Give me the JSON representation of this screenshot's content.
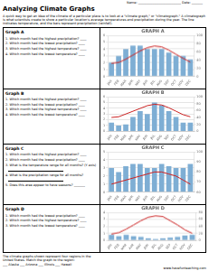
{
  "title": "Analyzing Climate Graphs",
  "subtitle": "A quick way to get an idea of the climate of a particular place is to look at a \"climate graph,\" or \"climatograph.\" A climatograph is what scientists create to show a particular location's average temperatures and precipitation during the year.  The line indicates temperature, and the bars represent precipitation (rainfall).",
  "annotations": [
    "Name: ___________________________   Date: _______",
    "The climate graphs shown represent four regions in the",
    "United States. Match the graph to the region:",
    "___ Alaska   ___ Arizona   ___ Illinois   ___ Hawaii",
    "www.havefunteaching.com"
  ],
  "chart_data": [
    {
      "type": "bar",
      "title": "GRAPH A",
      "annotations": [
        "Graph A",
        "1.  Which month had the highest precipitation? ____",
        "2.  Which month had the lowest precipitation? ____",
        "3.  Which month had the highest temperature? ____",
        "4.  Which month had the lowest temperature? ____"
      ],
      "categories": [
        "JAN",
        "FEB",
        "MAR",
        "APR",
        "MAY",
        "JUN",
        "JUL",
        "AUG",
        "SEP",
        "OCT",
        "NOV",
        "DEC"
      ],
      "series": [
        {
          "type": "bar",
          "color": "#7eaed4",
          "values": [
            2.0,
            3.0,
            4.0,
            4.5,
            4.5,
            4.0,
            4.0,
            4.0,
            3.5,
            3.0,
            3.0,
            2.5
          ]
        },
        {
          "type": "line",
          "color": "#cc2222",
          "axis": "y2",
          "values": [
            32,
            34,
            42,
            52,
            62,
            70,
            74,
            72,
            64,
            54,
            44,
            35
          ]
        }
      ],
      "ylim": [
        0,
        6
      ],
      "yticks": [
        0,
        1,
        2,
        3,
        4,
        5,
        6
      ],
      "y2lim": [
        0,
        100
      ],
      "y2ticks": [
        0,
        20,
        40,
        60,
        80,
        100
      ],
      "grid": true
    },
    {
      "type": "bar",
      "title": "GRAPH B",
      "annotations": [
        "Graph B",
        "1.  Which month had the highest precipitation? ____",
        "2.  Which month had the lowest precipitation? ____",
        "3.  Which month had the highest temperature? ____",
        "4.  Which month had the lowest temperature? ____"
      ],
      "categories": [
        "JAN",
        "FEB",
        "MAR",
        "APR",
        "MAY",
        "JUN",
        "JUL",
        "AUG",
        "SEP",
        "OCT",
        "NOV",
        "DEC"
      ],
      "series": [
        {
          "type": "bar",
          "color": "#7eaed4",
          "values": [
            1.5,
            1.0,
            1.2,
            2.5,
            3.5,
            3.0,
            5.0,
            4.5,
            3.5,
            2.5,
            1.5,
            1.5
          ]
        },
        {
          "type": "line",
          "color": "#cc2222",
          "axis": "y2",
          "values": [
            40,
            42,
            50,
            58,
            66,
            74,
            78,
            76,
            68,
            58,
            48,
            42
          ]
        }
      ],
      "ylim": [
        0,
        6
      ],
      "yticks": [
        0,
        1,
        2,
        3,
        4,
        5,
        6
      ],
      "y2lim": [
        0,
        100
      ],
      "y2ticks": [
        0,
        20,
        40,
        60,
        80,
        100
      ],
      "grid": true
    },
    {
      "type": "bar",
      "title": "GRAPH C",
      "annotations": [
        "Graph C",
        "1.  Which month had the highest precipitation? ____",
        "2.  Which month had the lowest precipitation? ____",
        "3.  What is the temperature range for all months? (Y axis)",
        "4.  What is the precipitation range for all months?",
        "5.  Does this area appear to have seasons? _______"
      ],
      "categories": [
        "JAN",
        "FEB",
        "MAR",
        "APR",
        "MAY",
        "JUN",
        "JUL",
        "AUG",
        "SEP",
        "OCT",
        "NOV",
        "DEC"
      ],
      "series": [
        {
          "type": "bar",
          "color": "#7eaed4",
          "values": [
            3.0,
            2.5,
            3.2,
            3.5,
            3.5,
            3.0,
            3.0,
            3.5,
            3.2,
            3.0,
            3.0,
            3.5
          ]
        },
        {
          "type": "line",
          "color": "#cc2222",
          "axis": "y2",
          "values": [
            68,
            70,
            72,
            74,
            76,
            78,
            80,
            80,
            78,
            76,
            72,
            68
          ]
        }
      ],
      "ylim": [
        0,
        5
      ],
      "yticks": [
        0,
        1,
        2,
        3,
        4,
        5
      ],
      "y2lim": [
        60,
        100
      ],
      "y2ticks": [
        60,
        70,
        80,
        90,
        100
      ],
      "grid": true
    },
    {
      "type": "bar",
      "title": "GRAPH D",
      "annotations": [
        "Graph D",
        "1.  Which month had the lowest precipitation? ____",
        "2.  Which month had the highest temperature? ____",
        "3.  Which month had the lowest temperature? ____"
      ],
      "categories": [
        "JAN",
        "FEB",
        "MAR",
        "APR",
        "MAY",
        "JUN",
        "JUL",
        "AUG",
        "SEP",
        "OCT",
        "NOV",
        "DEC"
      ],
      "series": [
        {
          "type": "bar",
          "color": "#7eaed4",
          "values": [
            0.8,
            0.6,
            0.8,
            0.6,
            0.5,
            0.3,
            0.2,
            0.3,
            0.4,
            0.5,
            0.7,
            0.8
          ]
        },
        {
          "type": "line",
          "color": "#cc2222",
          "axis": "y2",
          "values": [
            18,
            22,
            32,
            44,
            56,
            66,
            70,
            68,
            56,
            44,
            30,
            20
          ]
        }
      ],
      "ylim": [
        0,
        4
      ],
      "yticks": [
        0,
        1,
        2,
        3,
        4
      ],
      "y2lim": [
        0,
        80
      ],
      "y2ticks": [
        0,
        20,
        40,
        60,
        80
      ],
      "grid": true
    }
  ]
}
